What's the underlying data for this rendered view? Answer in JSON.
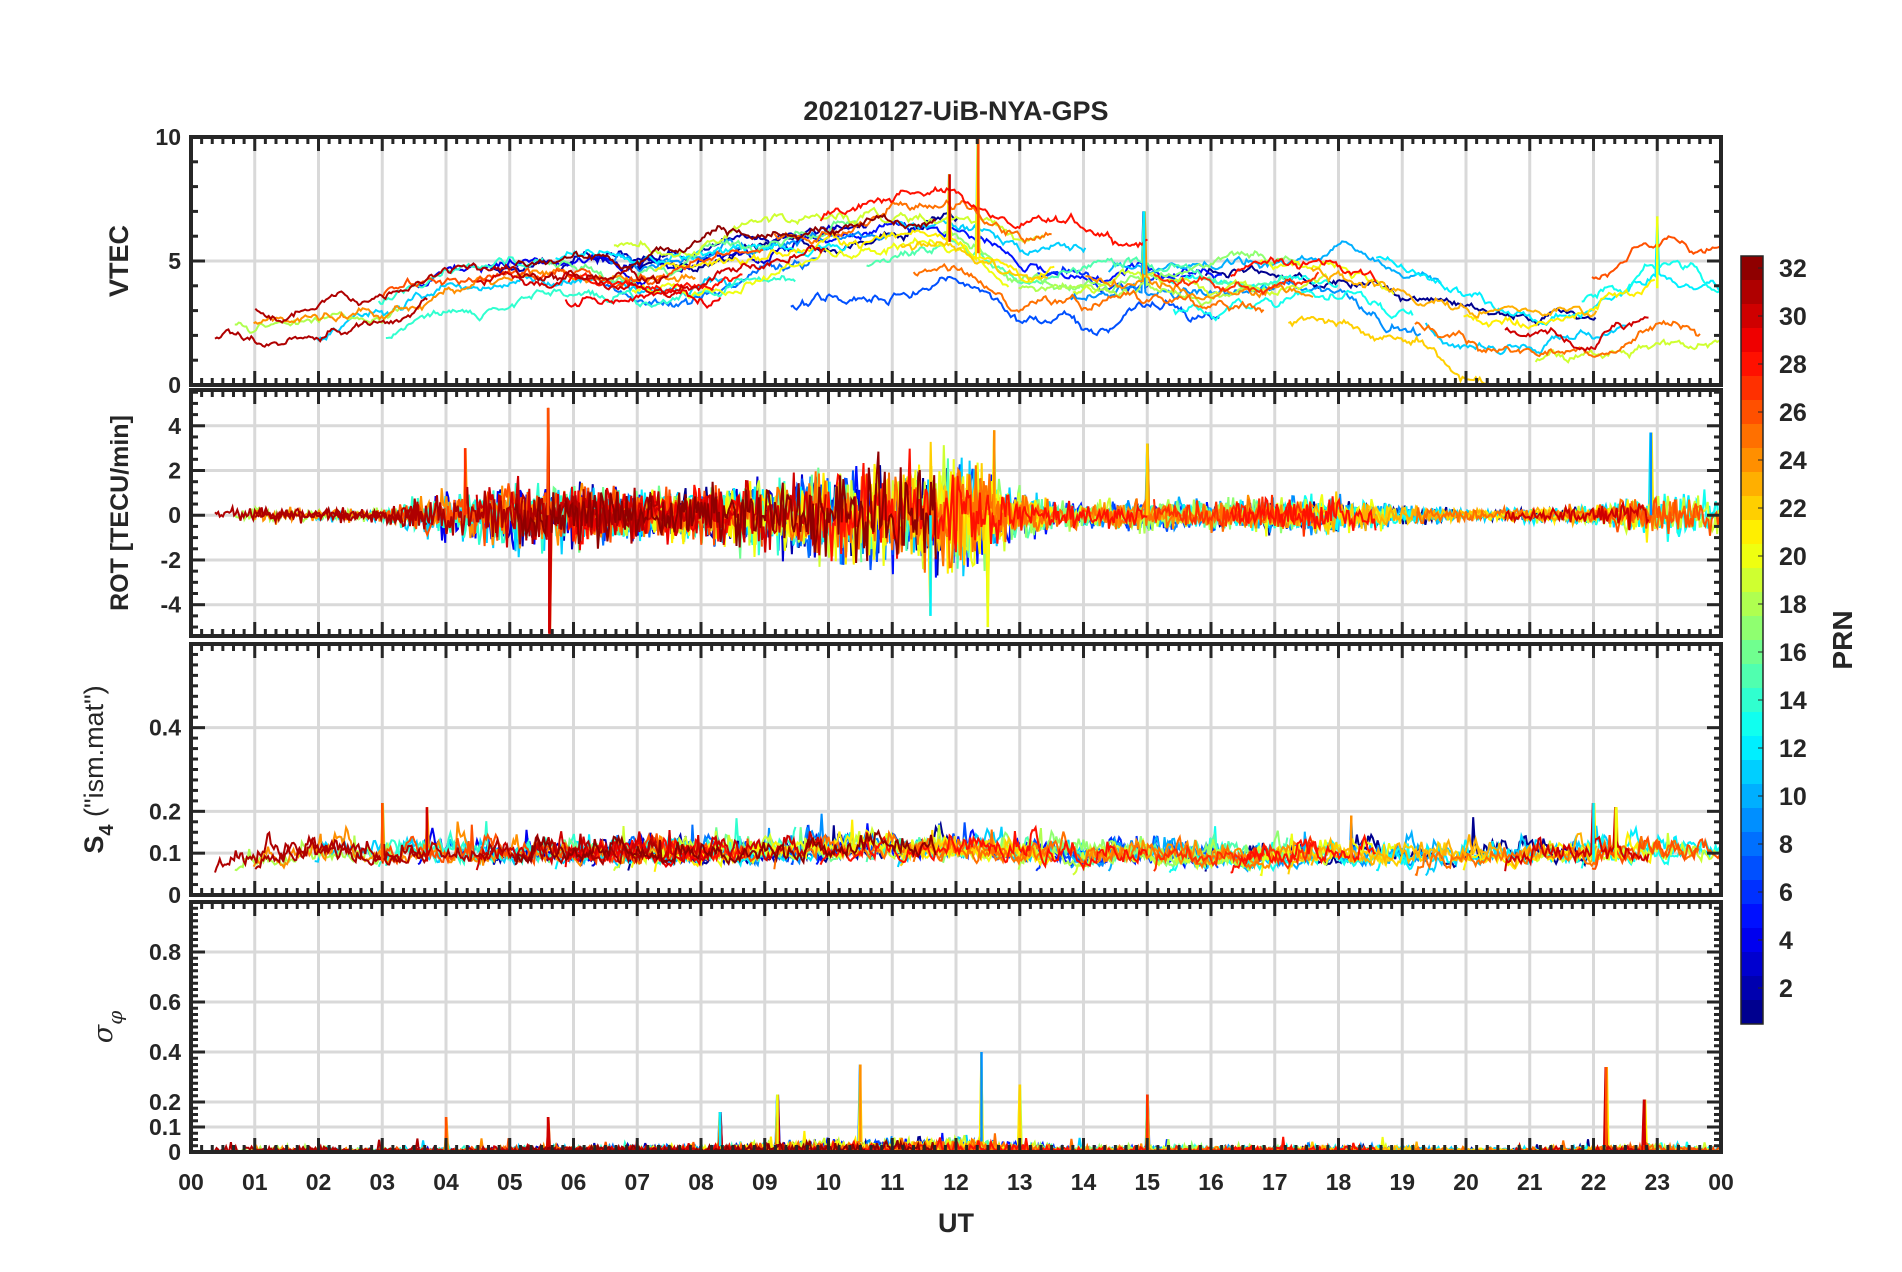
{
  "chart_data": {
    "type": "line",
    "title": "20210127-UiB-NYA-GPS",
    "xlabel": "UT",
    "xlim": [
      0,
      24
    ],
    "x_tick_labels": [
      "00",
      "01",
      "02",
      "03",
      "04",
      "05",
      "06",
      "07",
      "08",
      "09",
      "10",
      "11",
      "12",
      "13",
      "14",
      "15",
      "16",
      "17",
      "18",
      "19",
      "20",
      "21",
      "22",
      "23",
      "00"
    ],
    "grid": true,
    "hours": [
      0,
      1,
      2,
      3,
      4,
      5,
      6,
      7,
      8,
      9,
      10,
      11,
      12,
      13,
      14,
      15,
      16,
      17,
      18,
      19,
      20,
      21,
      22,
      23,
      24
    ],
    "panels": [
      {
        "ylabel": "VTEC",
        "ylim": [
          0,
          10
        ],
        "yticks": [
          0,
          5,
          10
        ],
        "tick_labels": [
          "0",
          "5",
          "10"
        ],
        "hourly_level": [
          2.6,
          2.5,
          2.5,
          2.9,
          3.8,
          4.3,
          4.3,
          4.0,
          4.3,
          4.8,
          5.2,
          5.5,
          5.8,
          4.4,
          4.2,
          4.5,
          4.3,
          4.3,
          4.5,
          3.5,
          2.7,
          2.5,
          2.6,
          3.9,
          3.4
        ],
        "spikes": [
          {
            "t": 12.35,
            "v": 10.0
          },
          {
            "t": 11.9,
            "v": 8.5
          },
          {
            "t": 14.95,
            "v": 7.0
          },
          {
            "t": 23.0,
            "v": 6.8
          }
        ]
      },
      {
        "ylabel": "ROT [TECU/min]",
        "ylim": [
          -5.4,
          5.6
        ],
        "yticks": [
          -4,
          -2,
          0,
          2,
          4
        ],
        "tick_labels": [
          "-4",
          "-2",
          "0",
          "2",
          "4"
        ],
        "hourly_level": [
          0.35,
          0.35,
          0.3,
          0.35,
          1.1,
          1.6,
          1.4,
          1.1,
          1.2,
          1.6,
          2.0,
          2.3,
          2.6,
          1.1,
          0.5,
          0.7,
          0.6,
          0.8,
          0.9,
          0.5,
          0.25,
          0.3,
          0.45,
          1.1,
          0.9
        ],
        "spikes": [
          {
            "t": 5.6,
            "v": 4.8
          },
          {
            "t": 5.62,
            "v": -5.3
          },
          {
            "t": 11.6,
            "v": -4.5
          },
          {
            "t": 12.5,
            "v": -5.0
          },
          {
            "t": 12.6,
            "v": 3.8
          },
          {
            "t": 22.9,
            "v": 3.7
          },
          {
            "t": 15.0,
            "v": 3.2
          },
          {
            "t": 4.3,
            "v": 3.0
          }
        ]
      },
      {
        "ylabel": "S4 (\"ism.mat\")",
        "ylabel_main": "S",
        "ylabel_sub": "4",
        "ylabel_rest": " (\"ism.mat\")",
        "ylim": [
          0,
          0.6
        ],
        "yticks": [
          0,
          0.1,
          0.2,
          0.4
        ],
        "tick_labels": [
          "0",
          "0.1",
          "0.2",
          "0.4"
        ],
        "hourly_level": [
          0.08,
          0.07,
          0.08,
          0.08,
          0.08,
          0.08,
          0.08,
          0.08,
          0.08,
          0.08,
          0.09,
          0.09,
          0.09,
          0.08,
          0.07,
          0.08,
          0.07,
          0.07,
          0.08,
          0.07,
          0.07,
          0.08,
          0.08,
          0.08,
          0.09
        ],
        "spikes": [
          {
            "t": 3.0,
            "v": 0.22
          },
          {
            "t": 3.7,
            "v": 0.21
          },
          {
            "t": 22.0,
            "v": 0.22
          },
          {
            "t": 22.35,
            "v": 0.21
          },
          {
            "t": 18.2,
            "v": 0.19
          }
        ]
      },
      {
        "ylabel": "σφ",
        "ylabel_main": "σ",
        "ylabel_sub": "φ",
        "ylim": [
          0,
          1
        ],
        "yticks": [
          0,
          0.1,
          0.2,
          0.4,
          0.6,
          0.8
        ],
        "tick_labels": [
          "0",
          "0.1",
          "0.2",
          "0.4",
          "0.6",
          "0.8"
        ],
        "hourly_level": [
          0.02,
          0.02,
          0.02,
          0.015,
          0.015,
          0.02,
          0.02,
          0.02,
          0.02,
          0.03,
          0.04,
          0.04,
          0.05,
          0.03,
          0.02,
          0.02,
          0.02,
          0.02,
          0.02,
          0.02,
          0.015,
          0.015,
          0.02,
          0.03,
          0.02
        ],
        "spikes": [
          {
            "t": 4.0,
            "v": 0.14
          },
          {
            "t": 5.6,
            "v": 0.14
          },
          {
            "t": 8.3,
            "v": 0.16
          },
          {
            "t": 9.2,
            "v": 0.23
          },
          {
            "t": 10.5,
            "v": 0.35
          },
          {
            "t": 12.4,
            "v": 0.4
          },
          {
            "t": 13.0,
            "v": 0.27
          },
          {
            "t": 15.0,
            "v": 0.23
          },
          {
            "t": 22.2,
            "v": 0.34
          },
          {
            "t": 22.8,
            "v": 0.21
          }
        ]
      }
    ],
    "colorbar": {
      "label": "PRN",
      "range": [
        1,
        32
      ],
      "colormap": "jet",
      "tick_labels": [
        "2",
        "4",
        "6",
        "8",
        "10",
        "12",
        "14",
        "16",
        "18",
        "20",
        "22",
        "24",
        "26",
        "28",
        "30",
        "32"
      ],
      "ticks": [
        2,
        4,
        6,
        8,
        10,
        12,
        14,
        16,
        18,
        20,
        22,
        24,
        26,
        28,
        30,
        32
      ]
    },
    "series_count": 32
  }
}
